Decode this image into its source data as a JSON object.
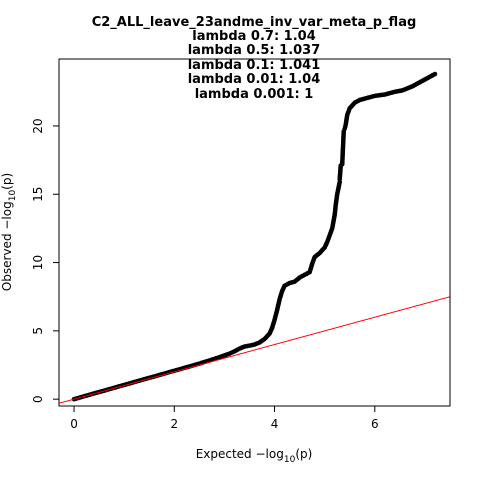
{
  "chart_data": {
    "type": "scatter",
    "title_lines": [
      "C2_ALL_leave_23andme_inv_var_meta_p_flag",
      "lambda 0.7: 1.04",
      "lambda 0.5: 1.037",
      "lambda 0.1: 1.041",
      "lambda 0.01: 1.04",
      "lambda 0.001: 1"
    ],
    "xlabel": {
      "prefix": "Expected  ",
      "func": "−log",
      "sub": "10",
      "arg": "(p)"
    },
    "ylabel": {
      "prefix": "Observed  ",
      "func": "−log",
      "sub": "10",
      "arg": "(p)"
    },
    "x_ticks": [
      0,
      2,
      4,
      6
    ],
    "y_ticks": [
      0,
      5,
      10,
      15,
      20
    ],
    "xlim": [
      -0.3,
      7.5
    ],
    "ylim": [
      -0.5,
      24.9
    ],
    "reference_line": {
      "slope": 1,
      "intercept": 0,
      "color": "#ff0000"
    },
    "point_color": "#000000",
    "points": [
      [
        0.0,
        0.0
      ],
      [
        0.1,
        0.1
      ],
      [
        0.2,
        0.21
      ],
      [
        0.3,
        0.31
      ],
      [
        0.4,
        0.42
      ],
      [
        0.5,
        0.52
      ],
      [
        0.6,
        0.62
      ],
      [
        0.7,
        0.73
      ],
      [
        0.8,
        0.83
      ],
      [
        0.9,
        0.94
      ],
      [
        1.0,
        1.04
      ],
      [
        1.1,
        1.14
      ],
      [
        1.2,
        1.25
      ],
      [
        1.3,
        1.35
      ],
      [
        1.4,
        1.46
      ],
      [
        1.5,
        1.56
      ],
      [
        1.6,
        1.66
      ],
      [
        1.7,
        1.77
      ],
      [
        1.8,
        1.87
      ],
      [
        1.9,
        1.98
      ],
      [
        2.0,
        2.08
      ],
      [
        2.1,
        2.18
      ],
      [
        2.2,
        2.29
      ],
      [
        2.3,
        2.39
      ],
      [
        2.4,
        2.5
      ],
      [
        2.5,
        2.6
      ],
      [
        2.6,
        2.72
      ],
      [
        2.7,
        2.83
      ],
      [
        2.8,
        2.95
      ],
      [
        2.9,
        3.07
      ],
      [
        3.0,
        3.2
      ],
      [
        3.1,
        3.33
      ],
      [
        3.2,
        3.5
      ],
      [
        3.3,
        3.7
      ],
      [
        3.4,
        3.85
      ],
      [
        3.5,
        3.92
      ],
      [
        3.6,
        4.0
      ],
      [
        3.7,
        4.15
      ],
      [
        3.8,
        4.4
      ],
      [
        3.9,
        4.8
      ],
      [
        3.95,
        5.2
      ],
      [
        4.0,
        5.8
      ],
      [
        4.05,
        6.5
      ],
      [
        4.1,
        7.3
      ],
      [
        4.15,
        7.9
      ],
      [
        4.2,
        8.3
      ],
      [
        4.3,
        8.5
      ],
      [
        4.4,
        8.6
      ],
      [
        4.5,
        8.9
      ],
      [
        4.6,
        9.1
      ],
      [
        4.7,
        9.3
      ],
      [
        4.75,
        9.9
      ],
      [
        4.8,
        10.4
      ],
      [
        4.9,
        10.7
      ],
      [
        5.0,
        11.1
      ],
      [
        5.05,
        11.5
      ],
      [
        5.1,
        12.0
      ],
      [
        5.15,
        12.5
      ],
      [
        5.2,
        13.5
      ],
      [
        5.22,
        14.2
      ],
      [
        5.25,
        15.0
      ],
      [
        5.3,
        15.9
      ],
      [
        5.3,
        16.1
      ],
      [
        5.32,
        17.1
      ],
      [
        5.35,
        17.2
      ],
      [
        5.38,
        19.6
      ],
      [
        5.4,
        19.8
      ],
      [
        5.42,
        20.1
      ],
      [
        5.45,
        20.8
      ],
      [
        5.5,
        21.3
      ],
      [
        5.55,
        21.5
      ],
      [
        5.6,
        21.7
      ],
      [
        5.7,
        21.9
      ],
      [
        5.8,
        22.0
      ],
      [
        5.9,
        22.1
      ],
      [
        6.0,
        22.2
      ],
      [
        6.1,
        22.25
      ],
      [
        6.2,
        22.3
      ],
      [
        6.3,
        22.4
      ],
      [
        6.4,
        22.5
      ],
      [
        6.55,
        22.6
      ],
      [
        6.75,
        22.9
      ],
      [
        7.2,
        23.8
      ]
    ]
  }
}
